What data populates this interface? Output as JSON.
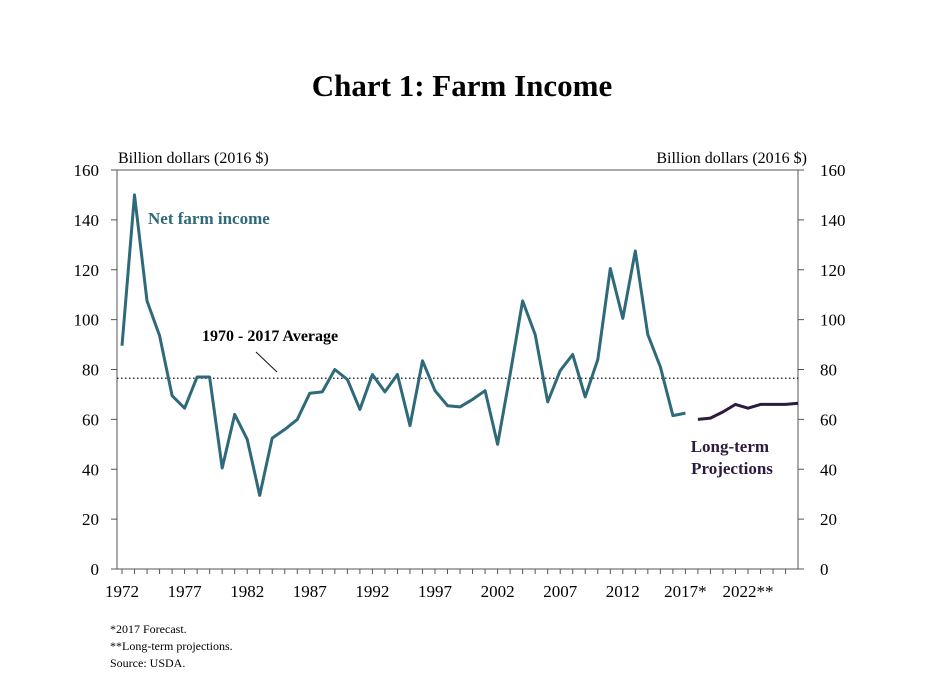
{
  "chart_data": {
    "type": "line",
    "title": "Chart 1: Farm Income",
    "left_axis_label": "Billion dollars (2016 $)",
    "right_axis_label": "Billion dollars (2016 $)",
    "ylim": [
      0,
      160
    ],
    "y_ticks": [
      "0",
      "20",
      "40",
      "60",
      "80",
      "100",
      "120",
      "140",
      "160"
    ],
    "xlim": [
      1972,
      2028
    ],
    "x_ticks": [
      {
        "x": 1972,
        "label": "1972"
      },
      {
        "x": 1977,
        "label": "1977"
      },
      {
        "x": 1982,
        "label": "1982"
      },
      {
        "x": 1987,
        "label": "1987"
      },
      {
        "x": 1992,
        "label": "1992"
      },
      {
        "x": 1997,
        "label": "1997"
      },
      {
        "x": 2002,
        "label": "2002"
      },
      {
        "x": 2007,
        "label": "2007"
      },
      {
        "x": 2012,
        "label": "2012"
      },
      {
        "x": 2017,
        "label": "2017*"
      },
      {
        "x": 2022,
        "label": "2022**"
      }
    ],
    "series": [
      {
        "name": "Net farm income",
        "color": "#2e6a7a",
        "x": [
          1972,
          1973,
          1974,
          1975,
          1976,
          1977,
          1978,
          1979,
          1980,
          1981,
          1982,
          1983,
          1984,
          1985,
          1986,
          1987,
          1988,
          1989,
          1990,
          1991,
          1992,
          1993,
          1994,
          1995,
          1996,
          1997,
          1998,
          1999,
          2000,
          2001,
          2002,
          2003,
          2004,
          2005,
          2006,
          2007,
          2008,
          2009,
          2010,
          2011,
          2012,
          2013,
          2014,
          2015,
          2016,
          2017
        ],
        "values": [
          89.5,
          150,
          107.5,
          93.5,
          69.5,
          64.5,
          77,
          77,
          40.5,
          62,
          52,
          29.5,
          52.5,
          56,
          60,
          70.5,
          71,
          80,
          76,
          64,
          78,
          71,
          78,
          57.5,
          83.5,
          71.5,
          65.5,
          65,
          68,
          71.5,
          50,
          78,
          107.5,
          94,
          67,
          79.5,
          86,
          69,
          84,
          120.5,
          100.5,
          127.5,
          94,
          81,
          61.5,
          62.5
        ]
      },
      {
        "name": "Long-term Projections",
        "color": "#2d1b3d",
        "x": [
          2018,
          2019,
          2020,
          2021,
          2022,
          2023,
          2024,
          2025,
          2026
        ],
        "values": [
          60,
          60.5,
          63,
          66,
          64.5,
          66,
          66,
          66,
          66.5
        ]
      }
    ],
    "average": {
      "label": "1970 - 2017 Average",
      "value": 76.5
    },
    "notes": [
      "*2017 Forecast.",
      "**Long-term projections.",
      "Source: USDA."
    ]
  }
}
